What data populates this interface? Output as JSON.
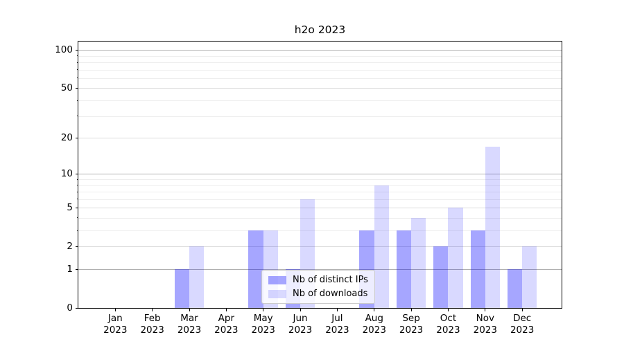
{
  "chart_data": {
    "type": "bar",
    "title": "h2o 2023",
    "yscale": "log1p",
    "ylim": [
      0,
      113
    ],
    "grid": true,
    "legend_position": "lower center",
    "categories": [
      "Jan 2023",
      "Feb 2023",
      "Mar 2023",
      "Apr 2023",
      "May 2023",
      "Jun 2023",
      "Jul 2023",
      "Aug 2023",
      "Sep 2023",
      "Oct 2023",
      "Nov 2023",
      "Dec 2023"
    ],
    "series": [
      {
        "name": "Nb of distinct IPs",
        "values": [
          0,
          0,
          1,
          0,
          3,
          1,
          0,
          3,
          3,
          2,
          3,
          1
        ],
        "color": "rgba(0,0,255,0.35)",
        "color_hex": "#a6a6ff"
      },
      {
        "name": "Nb of downloads",
        "values": [
          0,
          0,
          2,
          0,
          3,
          6,
          0,
          8,
          4,
          5,
          17,
          2
        ],
        "color": "rgba(0,0,255,0.15)",
        "color_hex": "#d9d9ff"
      }
    ],
    "y_major_ticks": [
      0,
      1,
      2,
      5,
      10,
      20,
      50,
      100
    ],
    "y_decade_ticks": [
      1,
      10,
      100
    ],
    "y_minor_ticks": [
      3,
      4,
      6,
      7,
      8,
      9,
      30,
      40,
      60,
      70,
      80,
      90
    ]
  }
}
